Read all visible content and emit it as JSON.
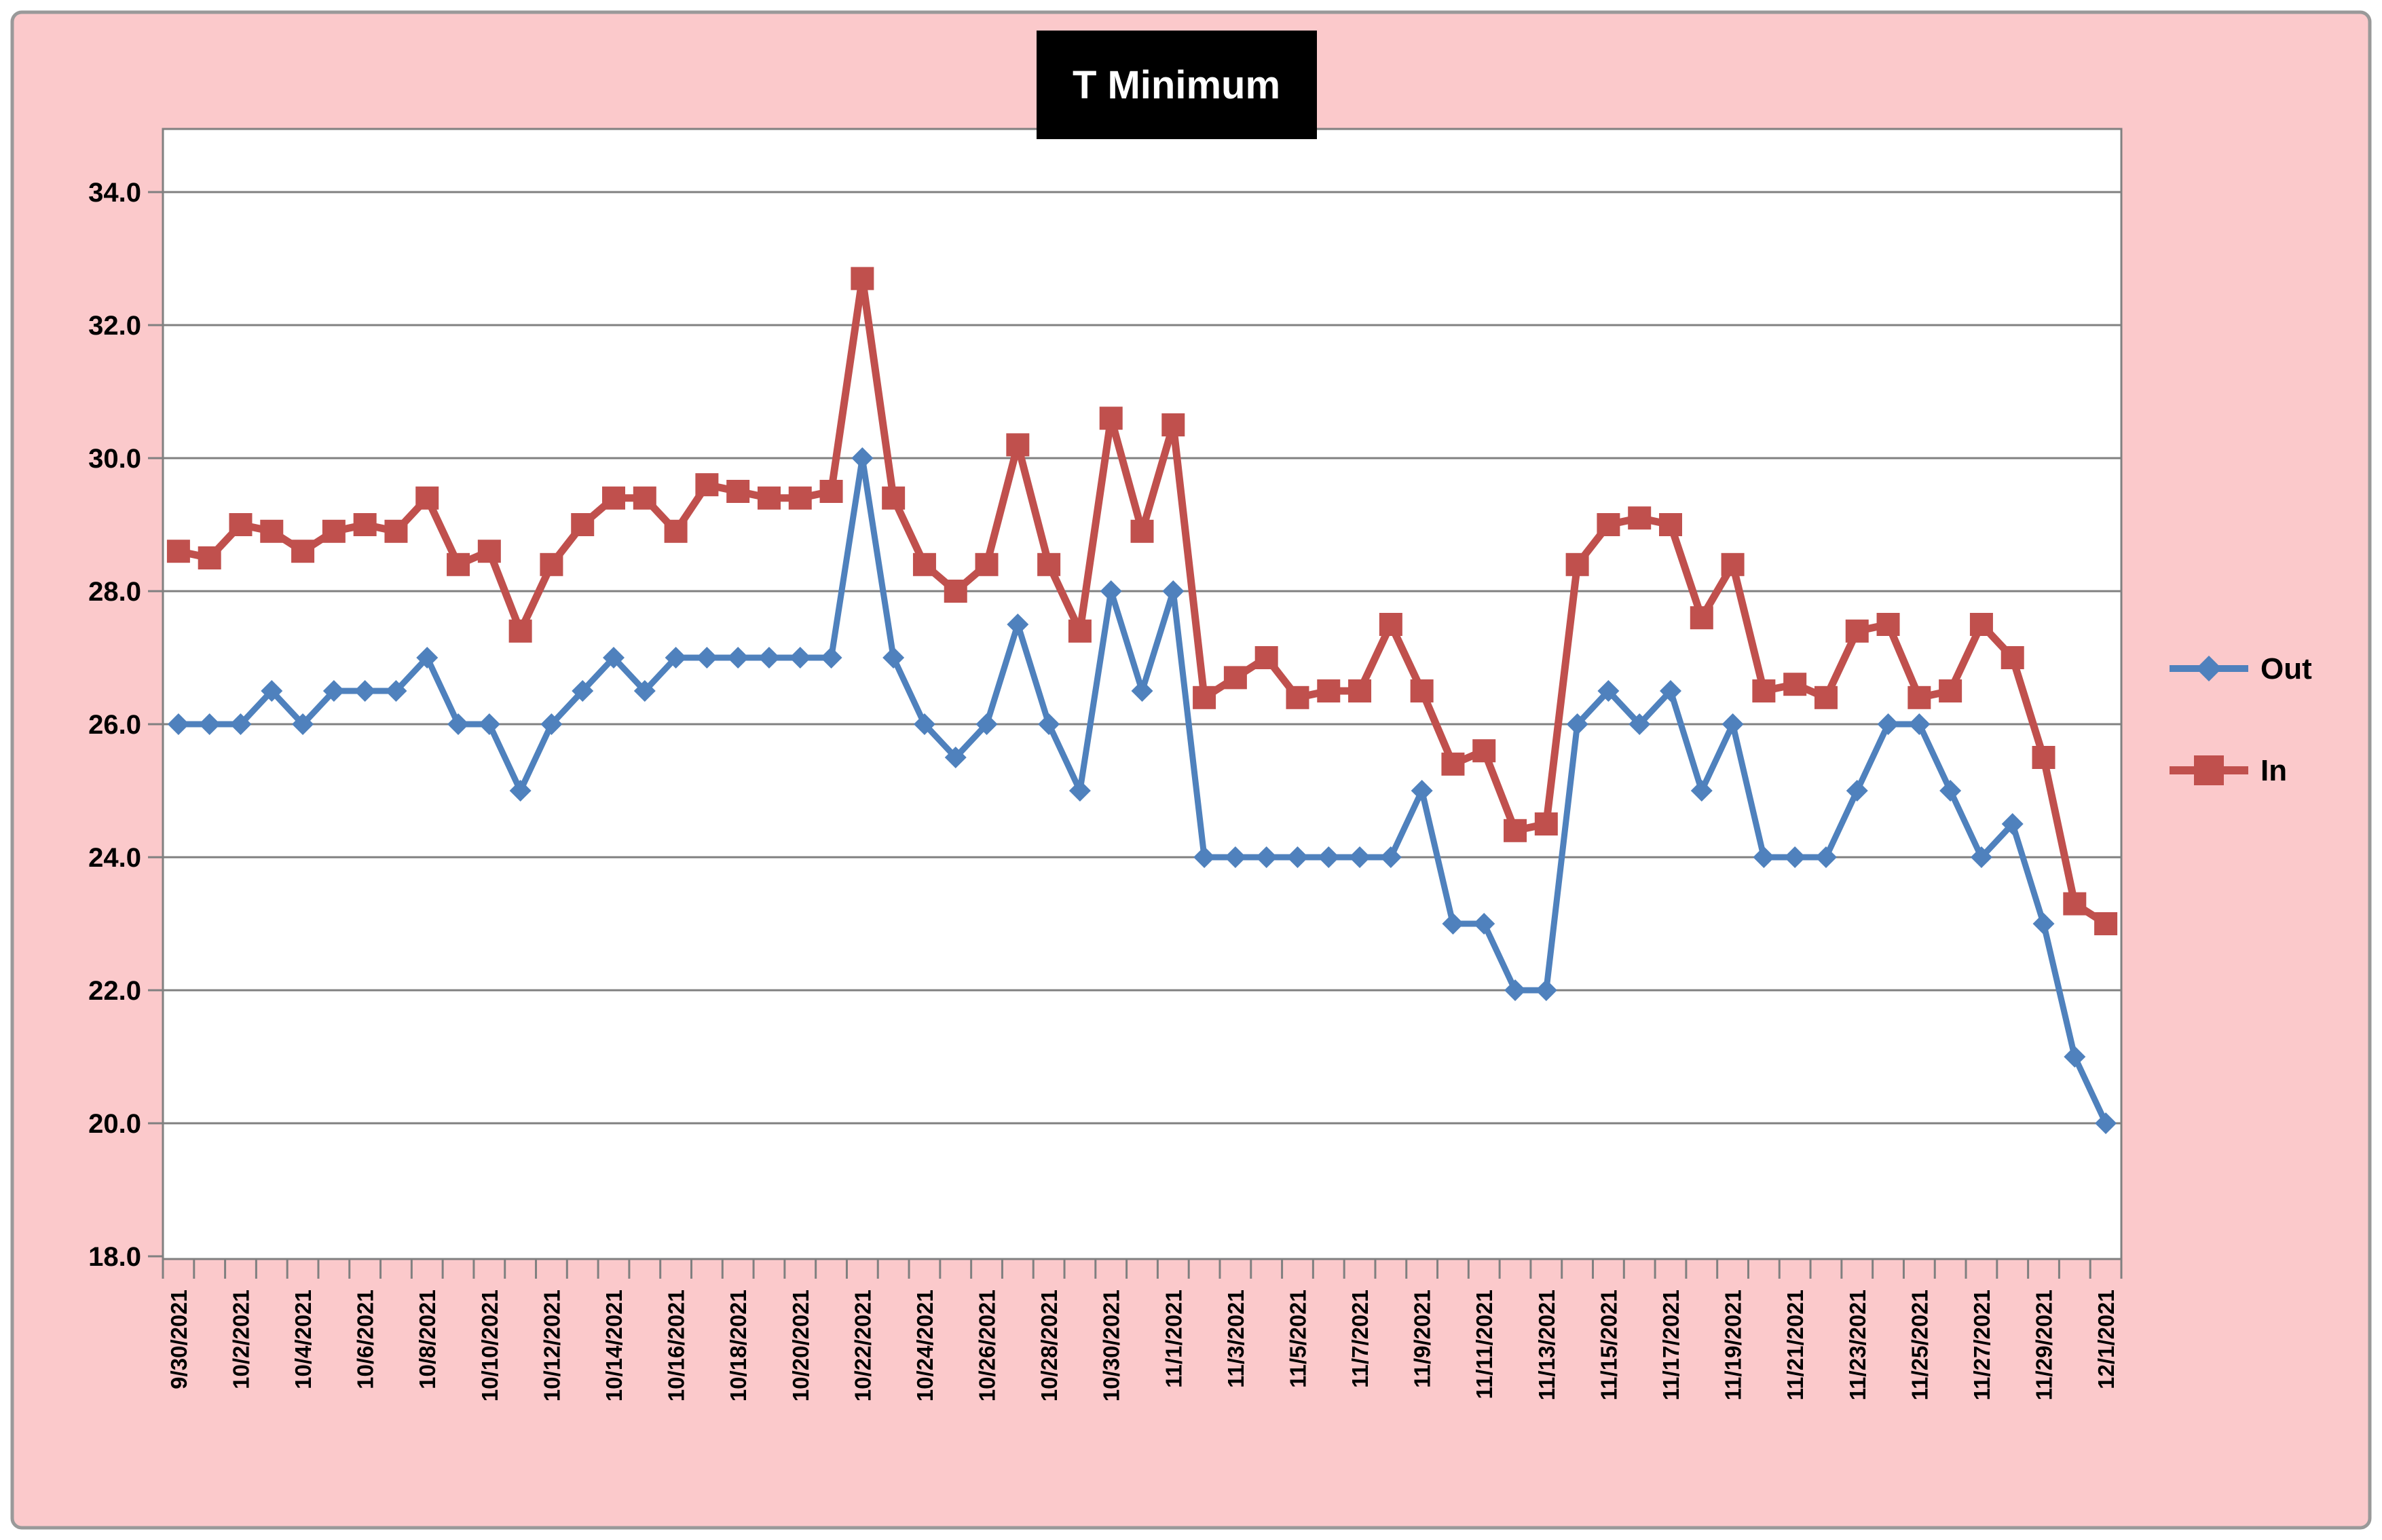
{
  "title": "T Minimum",
  "legend": [
    {
      "label": "Out",
      "marker": "diamond"
    },
    {
      "label": "In",
      "marker": "square"
    }
  ],
  "colors": {
    "chart_background": "#FBC9CB",
    "frame_border": "#999999",
    "plot_background": "#FFFFFF",
    "gridline": "#808080",
    "axis_line": "#808080",
    "title_background": "#000000",
    "title_text": "#FFFFFF",
    "series_out": "#4F81BD",
    "series_in": "#C0504D"
  },
  "chart_data": {
    "type": "line",
    "title": "T Minimum",
    "xlabel": "",
    "ylabel": "",
    "ylim": [
      18,
      34
    ],
    "ytick_step": 2,
    "ytick_labels": [
      "18.0",
      "20.0",
      "22.0",
      "24.0",
      "26.0",
      "28.0",
      "30.0",
      "32.0",
      "34.0"
    ],
    "grid": true,
    "legend_position": "right",
    "x_tick_label_interval": 2,
    "x": [
      "9/30/2021",
      "10/1/2021",
      "10/2/2021",
      "10/3/2021",
      "10/4/2021",
      "10/5/2021",
      "10/6/2021",
      "10/7/2021",
      "10/8/2021",
      "10/9/2021",
      "10/10/2021",
      "10/11/2021",
      "10/12/2021",
      "10/13/2021",
      "10/14/2021",
      "10/15/2021",
      "10/16/2021",
      "10/17/2021",
      "10/18/2021",
      "10/19/2021",
      "10/20/2021",
      "10/21/2021",
      "10/22/2021",
      "10/23/2021",
      "10/24/2021",
      "10/25/2021",
      "10/26/2021",
      "10/27/2021",
      "10/28/2021",
      "10/29/2021",
      "10/30/2021",
      "10/31/2021",
      "11/1/2021",
      "11/2/2021",
      "11/3/2021",
      "11/4/2021",
      "11/5/2021",
      "11/6/2021",
      "11/7/2021",
      "11/8/2021",
      "11/9/2021",
      "11/10/2021",
      "11/11/2021",
      "11/12/2021",
      "11/13/2021",
      "11/14/2021",
      "11/15/2021",
      "11/16/2021",
      "11/17/2021",
      "11/18/2021",
      "11/19/2021",
      "11/20/2021",
      "11/21/2021",
      "11/22/2021",
      "11/23/2021",
      "11/24/2021",
      "11/25/2021",
      "11/26/2021",
      "11/27/2021",
      "11/28/2021",
      "11/29/2021",
      "11/30/2021",
      "12/1/2021"
    ],
    "series": [
      {
        "name": "Out",
        "color": "#4F81BD",
        "marker": "diamond",
        "values": [
          26.0,
          26.0,
          26.0,
          26.5,
          26.0,
          26.5,
          26.5,
          26.5,
          27.0,
          26.0,
          26.0,
          25.0,
          26.0,
          26.5,
          27.0,
          26.5,
          27.0,
          27.0,
          27.0,
          27.0,
          27.0,
          27.0,
          30.0,
          27.0,
          26.0,
          25.5,
          26.0,
          27.5,
          26.0,
          25.0,
          28.0,
          26.5,
          28.0,
          24.0,
          24.0,
          24.0,
          24.0,
          24.0,
          24.0,
          24.0,
          25.0,
          23.0,
          23.0,
          22.0,
          22.0,
          26.0,
          26.5,
          26.0,
          26.5,
          25.0,
          26.0,
          24.0,
          24.0,
          24.0,
          25.0,
          26.0,
          26.0,
          25.0,
          24.0,
          24.5,
          23.0,
          21.0,
          20.0
        ]
      },
      {
        "name": "In",
        "color": "#C0504D",
        "marker": "square",
        "values": [
          28.6,
          28.5,
          29.0,
          28.9,
          28.6,
          28.9,
          29.0,
          28.9,
          29.4,
          28.4,
          28.6,
          27.4,
          28.4,
          29.0,
          29.4,
          29.4,
          28.9,
          29.6,
          29.5,
          29.4,
          29.4,
          29.5,
          32.7,
          29.4,
          28.4,
          28.0,
          28.4,
          30.2,
          28.4,
          27.4,
          30.6,
          28.9,
          30.5,
          26.4,
          26.7,
          27.0,
          26.4,
          26.5,
          26.5,
          27.5,
          26.5,
          25.4,
          25.6,
          24.4,
          24.5,
          28.4,
          29.0,
          29.1,
          29.0,
          27.6,
          28.4,
          26.5,
          26.6,
          26.4,
          27.4,
          27.5,
          26.4,
          26.5,
          27.5,
          27.0,
          25.5,
          23.3,
          23.0
        ]
      }
    ]
  }
}
